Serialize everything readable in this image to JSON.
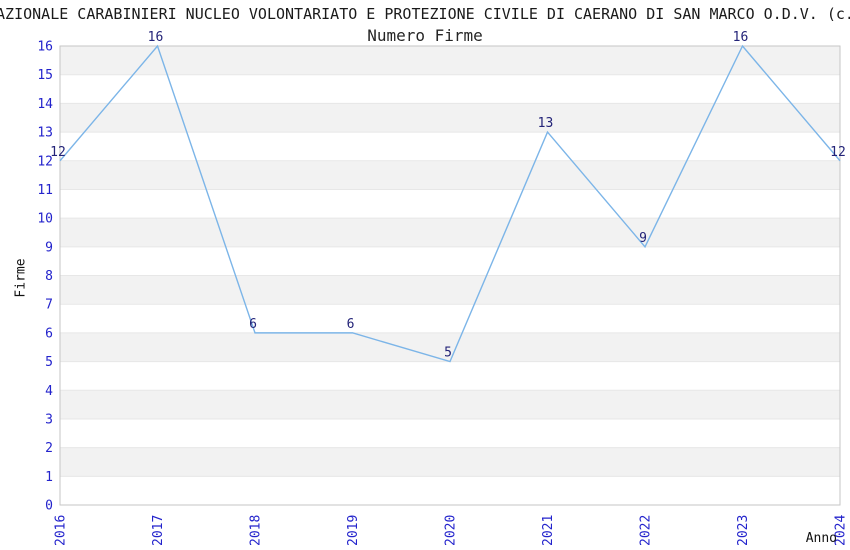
{
  "chart_data": {
    "type": "line",
    "title": "AZIONALE CARABINIERI NUCLEO VOLONTARIATO E PROTEZIONE CIVILE DI CAERANO DI SAN MARCO O.D.V. (c.",
    "subtitle": "Numero Firme",
    "xlabel": "Anno",
    "ylabel": "Firme",
    "x": [
      2016,
      2017,
      2018,
      2019,
      2020,
      2021,
      2022,
      2023,
      2024
    ],
    "series": [
      {
        "name": "Numero Firme",
        "values": [
          12,
          16,
          6,
          6,
          5,
          13,
          9,
          16,
          12
        ]
      }
    ],
    "ylim": [
      0,
      16
    ],
    "ytick_step": 1,
    "grid": "horizontal-gridlines-with-alternating-bands",
    "legend_position": "none",
    "x_tick_rotation_deg": 90,
    "data_labels_shown": true,
    "colors": {
      "line": "#7cb5e8",
      "tick_label": "#2323cc",
      "data_label": "#232378",
      "band_fill": "#f2f2f2",
      "gridline": "#e7e7e7",
      "plot_border": "#c6c6c6",
      "title_text": "#1a1a1a",
      "background": "#ffffff"
    }
  }
}
